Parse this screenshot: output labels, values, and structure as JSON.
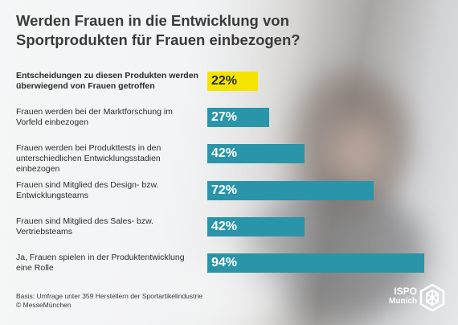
{
  "title": "Werden Frauen in die Entwicklung von Sportprodukten für Frauen einbezogen?",
  "chart_data": {
    "type": "bar",
    "orientation": "horizontal",
    "title": "Werden Frauen in die Entwicklung von Sportprodukten für Frauen einbezogen?",
    "unit": "%",
    "xlim": [
      0,
      100
    ],
    "categories": [
      "Entscheidungen zu diesen Produkten werden überwiegend von Frauen getroffen",
      "Frauen werden bei der Marktforschung im Vorfeld einbezogen",
      "Frauen werden bei Produkttests in den unterschiedlichen Entwicklungsstadien einbezogen",
      "Frauen sind Mitglied des Design- bzw. Entwicklungsteams",
      "Frauen sind Mitglied des Sales- bzw. Vertriebsteams",
      "Ja, Frauen spielen in der Produktentwicklung eine Rolle"
    ],
    "values": [
      22,
      27,
      42,
      72,
      42,
      94
    ],
    "value_labels": [
      "22%",
      "27%",
      "42%",
      "72%",
      "42%",
      "94%"
    ],
    "colors": [
      "#f5e400",
      "#2a95a8",
      "#2a95a8",
      "#2a95a8",
      "#2a95a8",
      "#2a95a8"
    ]
  },
  "footnote": "Basis: Umfrage unter 359 Herstellern der Sportartikelindustrie\n© MesseMünchen",
  "logo": {
    "line1": "ISPO",
    "line2": "Munich",
    "icon": "ispo-logo-icon"
  }
}
